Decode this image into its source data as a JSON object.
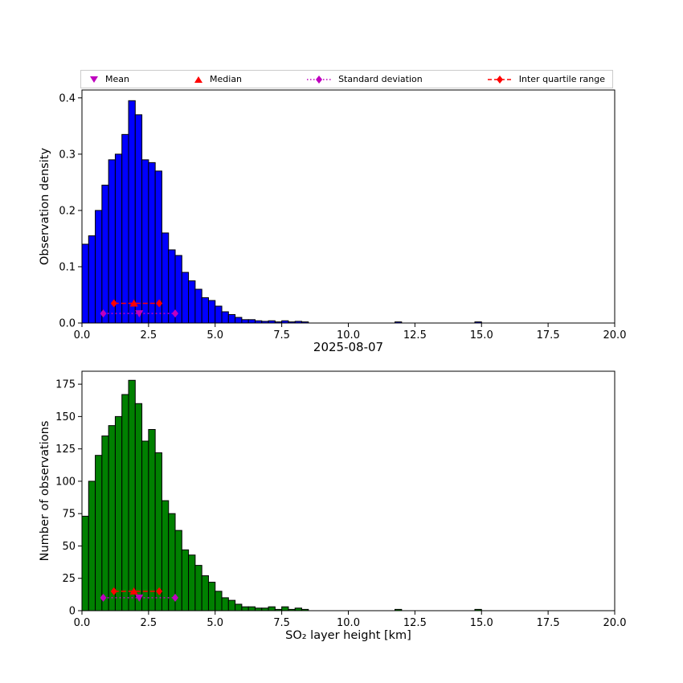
{
  "figure": {
    "title": "2025-08-07",
    "xlabel": "SO₂ layer height [km]",
    "background_color": "#ffffff",
    "legend": {
      "items": [
        {
          "label": "Mean",
          "marker": "triangle-down",
          "color": "#bf00bf"
        },
        {
          "label": "Median",
          "marker": "triangle-up",
          "color": "#ff0000"
        },
        {
          "label": "Standard deviation",
          "marker": "diamond-dotted-line",
          "color": "#bf00bf"
        },
        {
          "label": "Inter quartile range",
          "marker": "diamond-dashed-line",
          "color": "#ff0000"
        }
      ]
    }
  },
  "chart_data": [
    {
      "type": "bar",
      "subtype": "histogram",
      "title": "",
      "xlabel": "",
      "ylabel": "Observation density",
      "bar_color": "#0000ff",
      "bar_edge_color": "#000000",
      "xlim": [
        0,
        20
      ],
      "ylim": [
        0,
        0.414
      ],
      "bin_start": 0.0,
      "bin_width": 0.25,
      "xtick_values": [
        0,
        2.5,
        5,
        7.5,
        10,
        12.5,
        15,
        17.5,
        20
      ],
      "xtick_labels": [
        "0.0",
        "2.5",
        "5.0",
        "7.5",
        "10.0",
        "12.5",
        "15.0",
        "17.5",
        "20.0"
      ],
      "ytick_values": [
        0,
        0.1,
        0.2,
        0.3,
        0.4
      ],
      "ytick_labels": [
        "0.0",
        "0.1",
        "0.2",
        "0.3",
        "0.4"
      ],
      "values": [
        0.14,
        0.155,
        0.2,
        0.245,
        0.29,
        0.3,
        0.335,
        0.395,
        0.37,
        0.29,
        0.285,
        0.27,
        0.16,
        0.13,
        0.12,
        0.09,
        0.075,
        0.06,
        0.045,
        0.04,
        0.03,
        0.02,
        0.015,
        0.01,
        0.006,
        0.006,
        0.004,
        0.003,
        0.004,
        0.002,
        0.004,
        0.002,
        0.003,
        0.002,
        0,
        0,
        0,
        0,
        0,
        0,
        0,
        0,
        0,
        0,
        0,
        0,
        0,
        0.002,
        0,
        0,
        0,
        0,
        0,
        0,
        0,
        0,
        0,
        0,
        0,
        0.002
      ],
      "markers": {
        "mean": {
          "x": 2.15,
          "y": 0.017
        },
        "median": {
          "x": 1.95,
          "y": 0.035
        },
        "std_range": {
          "x1": 0.8,
          "x2": 3.5,
          "y": 0.017
        },
        "iqr_range": {
          "x1": 1.2,
          "x2": 2.9,
          "y": 0.035
        }
      }
    },
    {
      "type": "bar",
      "subtype": "histogram",
      "title": "",
      "xlabel": "SO₂ layer height [km]",
      "ylabel": "Number of observations",
      "bar_color": "#008000",
      "bar_edge_color": "#000000",
      "xlim": [
        0,
        20
      ],
      "ylim": [
        0,
        185
      ],
      "bin_start": 0.0,
      "bin_width": 0.25,
      "xtick_values": [
        0,
        2.5,
        5,
        7.5,
        10,
        12.5,
        15,
        17.5,
        20
      ],
      "xtick_labels": [
        "0.0",
        "2.5",
        "5.0",
        "7.5",
        "10.0",
        "12.5",
        "15.0",
        "17.5",
        "20.0"
      ],
      "ytick_values": [
        0,
        25,
        50,
        75,
        100,
        125,
        150,
        175
      ],
      "ytick_labels": [
        "0",
        "25",
        "50",
        "75",
        "100",
        "125",
        "150",
        "175"
      ],
      "values": [
        73,
        100,
        120,
        135,
        143,
        150,
        167,
        178,
        160,
        131,
        140,
        122,
        85,
        75,
        62,
        47,
        43,
        35,
        27,
        22,
        15,
        10,
        8,
        5,
        3,
        3,
        2,
        2,
        3,
        1,
        3,
        1,
        2,
        1,
        0,
        0,
        0,
        0,
        0,
        0,
        0,
        0,
        0,
        0,
        0,
        0,
        0,
        1,
        0,
        0,
        0,
        0,
        0,
        0,
        0,
        0,
        0,
        0,
        0,
        1
      ],
      "markers": {
        "mean": {
          "x": 2.15,
          "y": 10
        },
        "median": {
          "x": 1.95,
          "y": 15
        },
        "std_range": {
          "x1": 0.8,
          "x2": 3.5,
          "y": 10
        },
        "iqr_range": {
          "x1": 1.2,
          "x2": 2.9,
          "y": 15
        }
      }
    }
  ]
}
